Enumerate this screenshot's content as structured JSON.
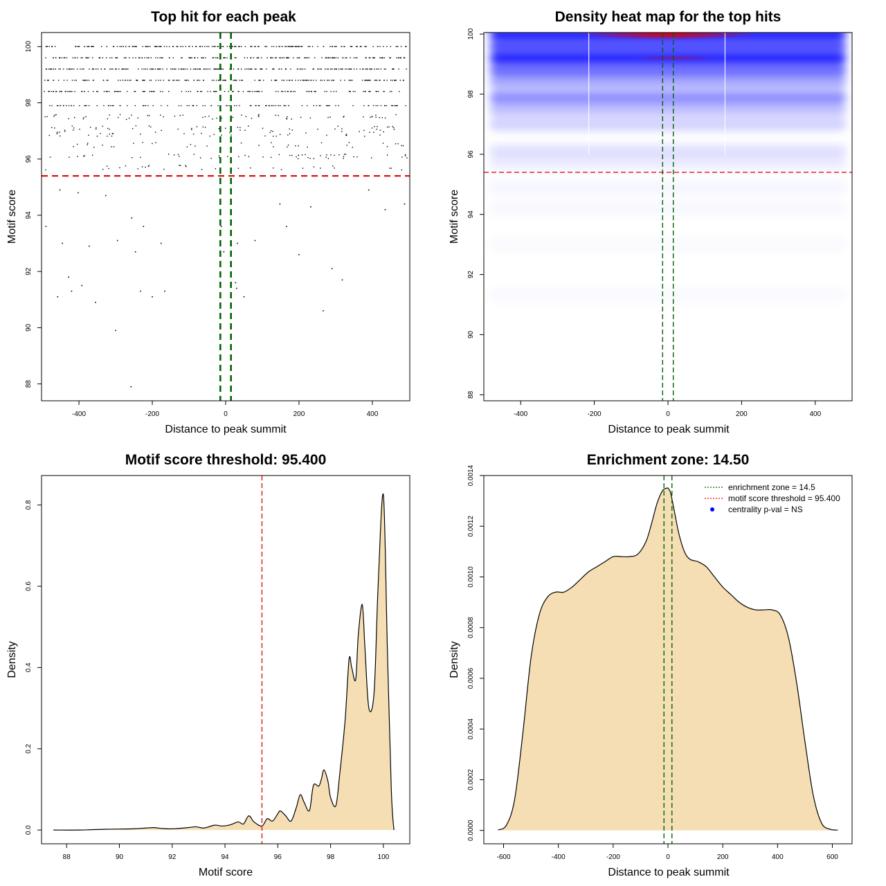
{
  "chart_data": [
    {
      "type": "scatter",
      "title": "Top hit for each peak",
      "xlabel": "Distance to peak summit",
      "ylabel": "Motif score",
      "xlim": [
        -500,
        500
      ],
      "ylim": [
        88,
        100
      ],
      "xticks": [
        "-400",
        "-200",
        "0",
        "200",
        "400"
      ],
      "yticks": [
        "88",
        "90",
        "92",
        "94",
        "96",
        "98",
        "100"
      ],
      "threshold_score": 95.4,
      "enrichment_zone": [
        -14.5,
        14.5
      ],
      "score_levels": [
        100,
        99.6,
        99.2,
        98.8,
        98.4,
        97.9,
        97.5,
        97.1,
        96.9,
        96.5,
        96.1,
        95.7
      ],
      "outliers": [
        {
          "x": -490,
          "y": 93.6
        },
        {
          "x": -458,
          "y": 91.1
        },
        {
          "x": -452,
          "y": 94.9
        },
        {
          "x": -445,
          "y": 93.0
        },
        {
          "x": -428,
          "y": 91.8
        },
        {
          "x": -420,
          "y": 91.3
        },
        {
          "x": -392,
          "y": 91.5
        },
        {
          "x": -355,
          "y": 90.9
        },
        {
          "x": -372,
          "y": 92.9
        },
        {
          "x": -300,
          "y": 89.9
        },
        {
          "x": -295,
          "y": 93.1
        },
        {
          "x": -258,
          "y": 87.9
        },
        {
          "x": -246,
          "y": 92.7
        },
        {
          "x": -232,
          "y": 91.3
        },
        {
          "x": -200,
          "y": 91.1
        },
        {
          "x": -176,
          "y": 93.0
        },
        {
          "x": -166,
          "y": 91.3
        },
        {
          "x": -256,
          "y": 93.9
        },
        {
          "x": -224,
          "y": 93.6
        },
        {
          "x": -12,
          "y": 93.6
        },
        {
          "x": -5,
          "y": 92.7
        },
        {
          "x": 27,
          "y": 91.6
        },
        {
          "x": 30,
          "y": 91.4
        },
        {
          "x": 32,
          "y": 93.0
        },
        {
          "x": 50,
          "y": 91.1
        },
        {
          "x": 80,
          "y": 93.1
        },
        {
          "x": 166,
          "y": 93.6
        },
        {
          "x": 200,
          "y": 92.6
        },
        {
          "x": 266,
          "y": 90.6
        },
        {
          "x": 290,
          "y": 92.1
        },
        {
          "x": 318,
          "y": 91.7
        },
        {
          "x": 435,
          "y": 94.2
        },
        {
          "x": 488,
          "y": 94.4
        },
        {
          "x": -402,
          "y": 94.8
        },
        {
          "x": -327,
          "y": 94.7
        },
        {
          "x": 148,
          "y": 94.4
        },
        {
          "x": 390,
          "y": 94.9
        },
        {
          "x": 232,
          "y": 94.3
        }
      ]
    },
    {
      "type": "heatmap",
      "title": "Density heat map for the top hits",
      "xlabel": "Distance to peak summit",
      "ylabel": "Motif score",
      "xlim": [
        -500,
        500
      ],
      "ylim": [
        88,
        100
      ],
      "xticks": [
        "-400",
        "-200",
        "0",
        "200",
        "400"
      ],
      "yticks": [
        "88",
        "90",
        "92",
        "94",
        "96",
        "98",
        "100"
      ],
      "threshold_score": 95.4,
      "enrichment_zone": [
        -14.5,
        14.5
      ],
      "bands": [
        {
          "score": 100.0,
          "density": 1.0
        },
        {
          "score": 99.6,
          "density": 0.75
        },
        {
          "score": 99.2,
          "density": 0.95
        },
        {
          "score": 98.8,
          "density": 0.6
        },
        {
          "score": 98.4,
          "density": 0.35
        },
        {
          "score": 97.9,
          "density": 0.45
        },
        {
          "score": 97.5,
          "density": 0.25
        },
        {
          "score": 97.0,
          "density": 0.18
        },
        {
          "score": 96.1,
          "density": 0.12
        },
        {
          "score": 95.7,
          "density": 0.07
        },
        {
          "score": 94.9,
          "density": 0.04
        },
        {
          "score": 94.2,
          "density": 0.03
        },
        {
          "score": 93.0,
          "density": 0.025
        },
        {
          "score": 91.3,
          "density": 0.025
        }
      ]
    },
    {
      "type": "area",
      "title": "Motif score threshold: 95.400",
      "xlabel": "Motif score",
      "ylabel": "Density",
      "xlim": [
        87.5,
        100.5
      ],
      "ylim": [
        0,
        0.82
      ],
      "xticks": [
        "88",
        "90",
        "92",
        "94",
        "96",
        "98",
        "100"
      ],
      "yticks": [
        "0.0",
        "0.2",
        "0.4",
        "0.6",
        "0.8"
      ],
      "threshold_score": 95.4,
      "x": [
        87.5,
        88.5,
        89.5,
        90.5,
        91.0,
        91.3,
        91.6,
        92.0,
        92.6,
        92.9,
        93.2,
        93.6,
        93.9,
        94.2,
        94.5,
        94.7,
        94.9,
        95.1,
        95.4,
        95.6,
        95.8,
        96.0,
        96.1,
        96.3,
        96.5,
        96.7,
        96.85,
        97.0,
        97.2,
        97.35,
        97.55,
        97.65,
        97.75,
        97.9,
        98.0,
        98.2,
        98.35,
        98.55,
        98.7,
        98.8,
        98.95,
        99.05,
        99.2,
        99.3,
        99.45,
        99.65,
        99.8,
        100.0,
        100.15,
        100.3,
        100.4
      ],
      "values": [
        0.0,
        0.0,
        0.002,
        0.003,
        0.005,
        0.006,
        0.004,
        0.003,
        0.006,
        0.008,
        0.005,
        0.012,
        0.01,
        0.013,
        0.02,
        0.015,
        0.035,
        0.02,
        0.01,
        0.028,
        0.022,
        0.04,
        0.047,
        0.035,
        0.022,
        0.055,
        0.087,
        0.068,
        0.048,
        0.11,
        0.108,
        0.125,
        0.148,
        0.12,
        0.08,
        0.06,
        0.14,
        0.27,
        0.42,
        0.4,
        0.37,
        0.48,
        0.555,
        0.45,
        0.3,
        0.34,
        0.6,
        0.825,
        0.45,
        0.1,
        0.0
      ]
    },
    {
      "type": "area",
      "title": "Enrichment zone: 14.50",
      "xlabel": "Distance to peak summit",
      "ylabel": "Density",
      "xlim": [
        -620,
        620
      ],
      "ylim": [
        0,
        0.00136
      ],
      "xticks": [
        "-600",
        "-400",
        "-200",
        "0",
        "200",
        "400",
        "600"
      ],
      "yticks": [
        "0.0000",
        "0.0002",
        "0.0004",
        "0.0006",
        "0.0008",
        "0.0010",
        "0.0012",
        "0.0014"
      ],
      "enrichment_zone": [
        -14.5,
        14.5
      ],
      "x": [
        -620,
        -590,
        -560,
        -530,
        -500,
        -470,
        -440,
        -410,
        -380,
        -350,
        -320,
        -290,
        -260,
        -230,
        -200,
        -170,
        -140,
        -110,
        -80,
        -60,
        -40,
        -20,
        -5,
        0,
        10,
        25,
        40,
        60,
        80,
        110,
        140,
        170,
        200,
        230,
        260,
        290,
        320,
        350,
        380,
        410,
        440,
        470,
        500,
        530,
        560,
        590,
        620
      ],
      "values": [
        2e-06,
        2e-05,
        0.00012,
        0.00038,
        0.00068,
        0.00085,
        0.00092,
        0.00094,
        0.00094,
        0.00096,
        0.00099,
        0.00102,
        0.00104,
        0.00106,
        0.00108,
        0.00108,
        0.00108,
        0.00109,
        0.00114,
        0.00121,
        0.00129,
        0.00134,
        0.00135,
        0.00135,
        0.00133,
        0.00125,
        0.00117,
        0.0011,
        0.00107,
        0.00106,
        0.00104,
        0.001,
        0.00096,
        0.00093,
        0.0009,
        0.00088,
        0.00087,
        0.00087,
        0.00087,
        0.00085,
        0.00076,
        0.00058,
        0.00035,
        0.00014,
        3e-05,
        5e-06,
        1e-06
      ],
      "legend": [
        {
          "label": "enrichment zone = 14.5",
          "color": "#006400"
        },
        {
          "label": "motif score threshold = 95.400",
          "color": "#ff0000"
        },
        {
          "label": "centrality p-val = NS",
          "color": "#0000ff"
        }
      ]
    }
  ]
}
